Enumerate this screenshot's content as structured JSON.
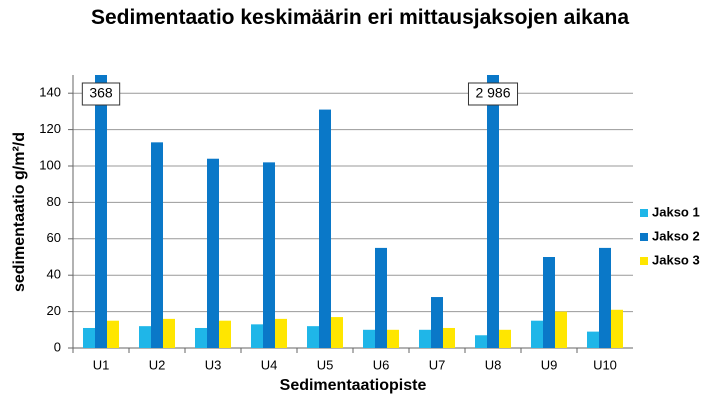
{
  "chart_data": {
    "type": "bar",
    "title": "Sedimentaatio keskimäärin eri mittausjaksojen aikana",
    "x_label": "Sedimentaatiopiste",
    "y_label": "sedimentaatio g/m²/d",
    "categories": [
      "U1",
      "U2",
      "U3",
      "U4",
      "U5",
      "U6",
      "U7",
      "U8",
      "U9",
      "U10"
    ],
    "series": [
      {
        "name": "Jakso 1",
        "color": "#1fb6e8",
        "values": [
          11,
          12,
          11,
          13,
          12,
          10,
          10,
          7,
          15,
          9
        ]
      },
      {
        "name": "Jakso 2",
        "color": "#0a78c8",
        "values": [
          368,
          113,
          104,
          102,
          131,
          55,
          28,
          2986,
          50,
          55
        ],
        "value_labels": [
          "368",
          null,
          null,
          null,
          null,
          null,
          null,
          "2 986",
          null,
          null
        ]
      },
      {
        "name": "Jakso 3",
        "color": "#ffe600",
        "values": [
          15,
          16,
          15,
          16,
          17,
          10,
          11,
          10,
          20,
          21
        ]
      }
    ],
    "ylim": [
      0,
      150
    ],
    "yticks": [
      0,
      20,
      40,
      60,
      80,
      100,
      120,
      140
    ],
    "grid": true,
    "legend": "right"
  }
}
